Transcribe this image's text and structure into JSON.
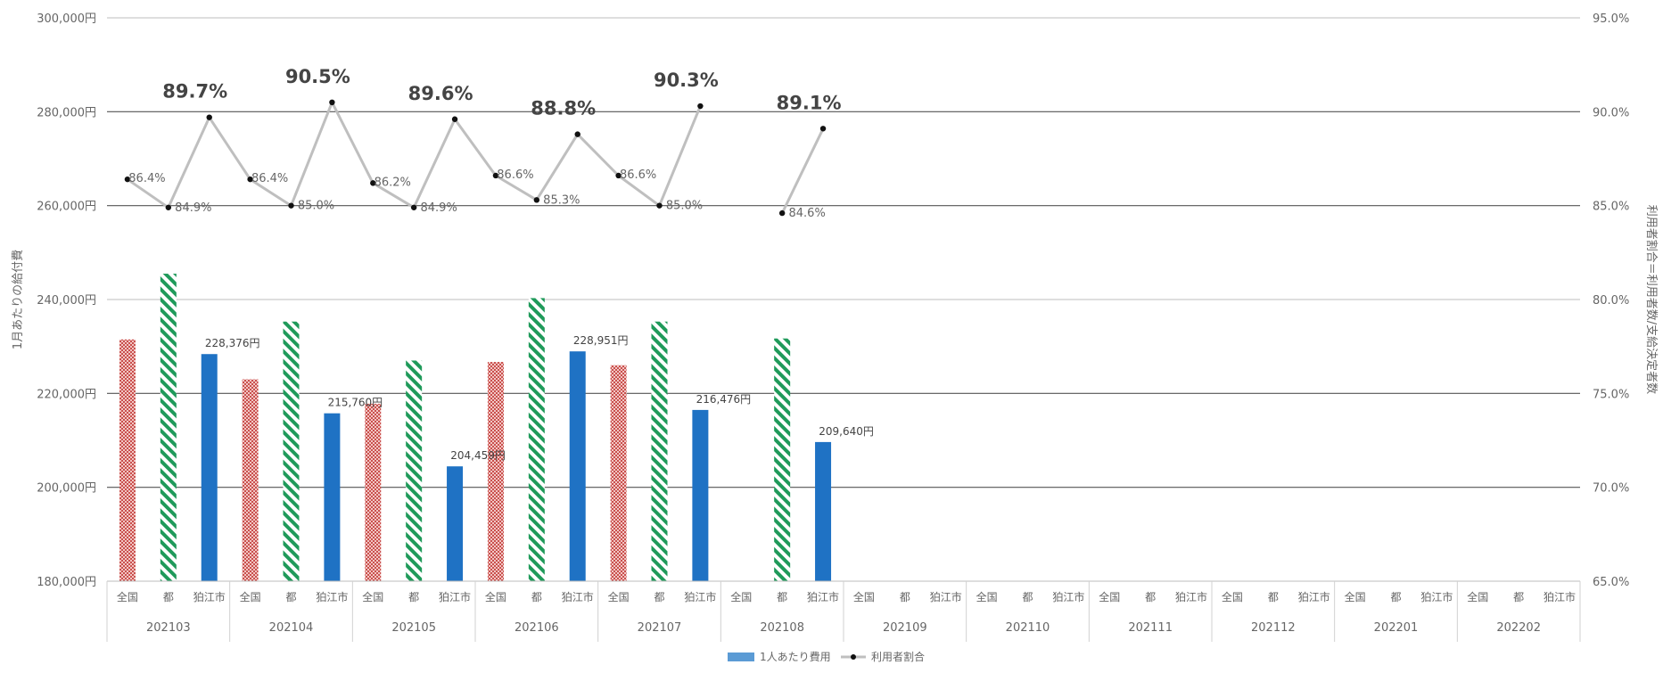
{
  "chart_data": {
    "type": "bar",
    "groups": [
      "202103",
      "202104",
      "202105",
      "202106",
      "202107",
      "202108",
      "202109",
      "202110",
      "202111",
      "202112",
      "202201",
      "202202"
    ],
    "sub_categories": [
      "全国",
      "都",
      "狛江市"
    ],
    "series": [
      {
        "name": "",
        "region": "全国",
        "color": "#d9807e",
        "pattern": "dots",
        "values": [
          231500,
          223000,
          217800,
          226700,
          226000,
          null,
          null,
          null,
          null,
          null,
          null,
          null
        ]
      },
      {
        "name": "",
        "region": "都",
        "color": "#1f9a5a",
        "pattern": "diagonal",
        "values": [
          245500,
          235300,
          227000,
          240300,
          235300,
          231700,
          null,
          null,
          null,
          null,
          null,
          null
        ]
      },
      {
        "name": "1人あたり費用",
        "region": "狛江市",
        "color": "#1f72c4",
        "pattern": "solid",
        "values": [
          228376,
          215760,
          204459,
          228951,
          216476,
          209640,
          null,
          null,
          null,
          null,
          null,
          null
        ],
        "labels": [
          "228,376円",
          "215,760円",
          "204,459円",
          "228,951円",
          "216,476円",
          "209,640円"
        ]
      }
    ],
    "line": {
      "name": "利用者割合",
      "values": [
        [
          86.4,
          84.9,
          89.7
        ],
        [
          86.4,
          85.0,
          90.5
        ],
        [
          86.2,
          84.9,
          89.6
        ],
        [
          86.6,
          85.3,
          88.8
        ],
        [
          86.6,
          85.0,
          90.3
        ],
        [
          null,
          84.6,
          89.1
        ]
      ],
      "labels": [
        [
          "86.4%",
          "84.9%",
          "89.7%"
        ],
        [
          "86.4%",
          "85.0%",
          "90.5%"
        ],
        [
          "86.2%",
          "84.9%",
          "89.6%"
        ],
        [
          "86.6%",
          "85.3%",
          "88.8%"
        ],
        [
          "86.6%",
          "85.0%",
          "90.3%"
        ],
        [
          "",
          "84.6%",
          "89.1%"
        ]
      ]
    },
    "y_left": {
      "min": 180000,
      "max": 300000,
      "ticks": [
        180000,
        200000,
        220000,
        240000,
        260000,
        280000,
        300000
      ],
      "tick_labels": [
        "180,000円",
        "200,000円",
        "220,000円",
        "240,000円",
        "260,000円",
        "280,000円",
        "300,000円"
      ],
      "label": "1月あたりの給付費"
    },
    "y_right": {
      "min": 65,
      "max": 95,
      "ticks": [
        65,
        70,
        75,
        80,
        85,
        90,
        95
      ],
      "tick_labels": [
        "65.0%",
        "70.0%",
        "75.0%",
        "80.0%",
        "85.0%",
        "90.0%",
        "95.0%"
      ],
      "label": "利用者割合＝利用者数/支給決定者数"
    },
    "grid": true,
    "legend": {
      "position": "bottom",
      "items": [
        "1人あたり費用",
        "利用者割合"
      ]
    }
  }
}
